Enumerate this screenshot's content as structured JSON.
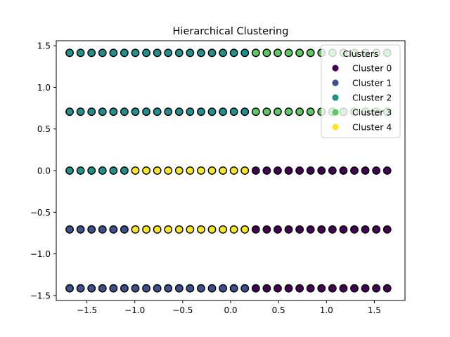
{
  "chart_data": {
    "type": "scatter",
    "title": "Hierarchical Clustering",
    "xlabel": "",
    "ylabel": "",
    "xlim": [
      -1.82,
      1.82
    ],
    "ylim": [
      -1.56,
      1.56
    ],
    "x_ticks": [
      -1.5,
      -1.0,
      -0.5,
      0.0,
      0.5,
      1.0,
      1.5
    ],
    "x_tick_labels": [
      "−1.5",
      "−1.0",
      "−0.5",
      "0.0",
      "0.5",
      "1.0",
      "1.5"
    ],
    "y_ticks": [
      -1.5,
      -1.0,
      -0.5,
      0.0,
      0.5,
      1.0,
      1.5
    ],
    "y_tick_labels": [
      "−1.5",
      "−1.0",
      "−0.5",
      "0.0",
      "0.5",
      "1.0",
      "1.5"
    ],
    "grid": false,
    "legend": {
      "title": "Clusters",
      "placement": "top-right",
      "entries": [
        {
          "label": "Cluster 0",
          "color": "#440154"
        },
        {
          "label": "Cluster 1",
          "color": "#3b528b"
        },
        {
          "label": "Cluster 2",
          "color": "#21918c"
        },
        {
          "label": "Cluster 3",
          "color": "#5ec962"
        },
        {
          "label": "Cluster 4",
          "color": "#fde725"
        }
      ]
    },
    "point_edge_color": "#000000",
    "x_grid": {
      "start": -1.6803,
      "step": 0.1143,
      "count": 30
    },
    "series": [
      {
        "y": 1.4142,
        "segments": [
          {
            "cluster": 2,
            "count": 17
          },
          {
            "cluster": 3,
            "count": 13
          }
        ]
      },
      {
        "y": 0.7071,
        "segments": [
          {
            "cluster": 2,
            "count": 17
          },
          {
            "cluster": 3,
            "count": 13
          }
        ]
      },
      {
        "y": 0.0,
        "segments": [
          {
            "cluster": 2,
            "count": 6
          },
          {
            "cluster": 4,
            "count": 11
          },
          {
            "cluster": 0,
            "count": 13
          }
        ]
      },
      {
        "y": -0.7071,
        "segments": [
          {
            "cluster": 1,
            "count": 6
          },
          {
            "cluster": 4,
            "count": 11
          },
          {
            "cluster": 0,
            "count": 13
          }
        ]
      },
      {
        "y": -1.4142,
        "segments": [
          {
            "cluster": 1,
            "count": 17
          },
          {
            "cluster": 0,
            "count": 13
          }
        ]
      }
    ]
  }
}
